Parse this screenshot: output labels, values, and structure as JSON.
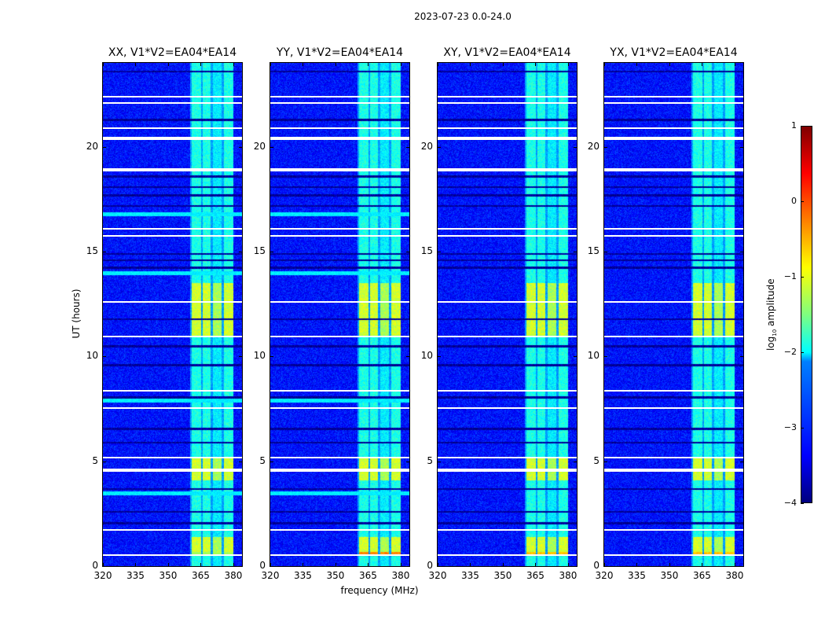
{
  "suptitle": "2023-07-23 0.0-24.0",
  "chart_data": {
    "type": "heatmap",
    "xlabel": "frequency (MHz)",
    "ylabel": "UT (hours)",
    "xlim": [
      320,
      384
    ],
    "ylim": [
      0,
      24
    ],
    "xticks": [
      "320",
      "335",
      "350",
      "365",
      "380"
    ],
    "xtick_values": [
      320,
      335,
      350,
      365,
      380
    ],
    "yticks": [
      "0",
      "5",
      "10",
      "15",
      "20"
    ],
    "ytick_values": [
      0,
      5,
      10,
      15,
      20
    ],
    "colormap": "jet",
    "colorbar": {
      "label": "log10 amplitude",
      "label_main": "log",
      "label_sub": "10",
      "label_rest": " amplitude",
      "range": [
        -4,
        1
      ],
      "ticks": [
        "1",
        "0",
        "−1",
        "−2",
        "−3",
        "−4"
      ],
      "tick_values": [
        1,
        0,
        -1,
        -2,
        -3,
        -4
      ]
    },
    "background_log_amplitude": -3.3,
    "rfi_band_mhz": [
      360.5,
      380
    ],
    "rfi_subbands_mhz": [
      [
        360.5,
        365
      ],
      [
        365.8,
        369.5
      ],
      [
        370.5,
        374.5
      ],
      [
        375.5,
        380
      ]
    ],
    "rfi_band_log_amplitude": -2.0,
    "strong_rfi_intervals_ut": [
      [
        11.0,
        13.5
      ],
      [
        4.1,
        5.2
      ],
      [
        0.5,
        1.4
      ]
    ],
    "strong_rfi_log_amplitude": -1.1,
    "flagged_rows_ut": [
      22.4,
      22.1,
      20.9,
      20.4,
      18.9,
      16.1,
      15.75,
      12.6,
      10.95,
      8.36,
      7.54,
      5.17,
      4.57,
      1.72,
      0.52
    ],
    "thick_flagged_rows_ut": [
      20.4,
      18.9,
      4.57
    ],
    "low_rows_ut": [
      23.6,
      21.3,
      18.6,
      18.1,
      17.7,
      17.2,
      14.9,
      14.6,
      14.25,
      11.8,
      10.5,
      9.6,
      8.06,
      6.56,
      5.9,
      3.7,
      2.6,
      2.06
    ],
    "panels": [
      {
        "title": "XX, V1*V2=EA04*EA14",
        "polarization": "XX",
        "cyan_rows_ut": [
          16.8,
          7.9,
          3.5,
          14.0
        ],
        "peak_row_ut": 0.6,
        "peak_log_amplitude": -1.3
      },
      {
        "title": "YY, V1*V2=EA04*EA14",
        "polarization": "YY",
        "cyan_rows_ut": [
          16.8,
          7.9,
          3.5,
          14.0
        ],
        "peak_row_ut": 0.6,
        "peak_log_amplitude": -0.3
      },
      {
        "title": "XY, V1*V2=EA04*EA14",
        "polarization": "XY",
        "cyan_rows_ut": [],
        "peak_row_ut": 0.6,
        "peak_log_amplitude": -0.6
      },
      {
        "title": "YX, V1*V2=EA04*EA14",
        "polarization": "YX",
        "cyan_rows_ut": [],
        "peak_row_ut": 0.6,
        "peak_log_amplitude": -0.6
      }
    ]
  }
}
